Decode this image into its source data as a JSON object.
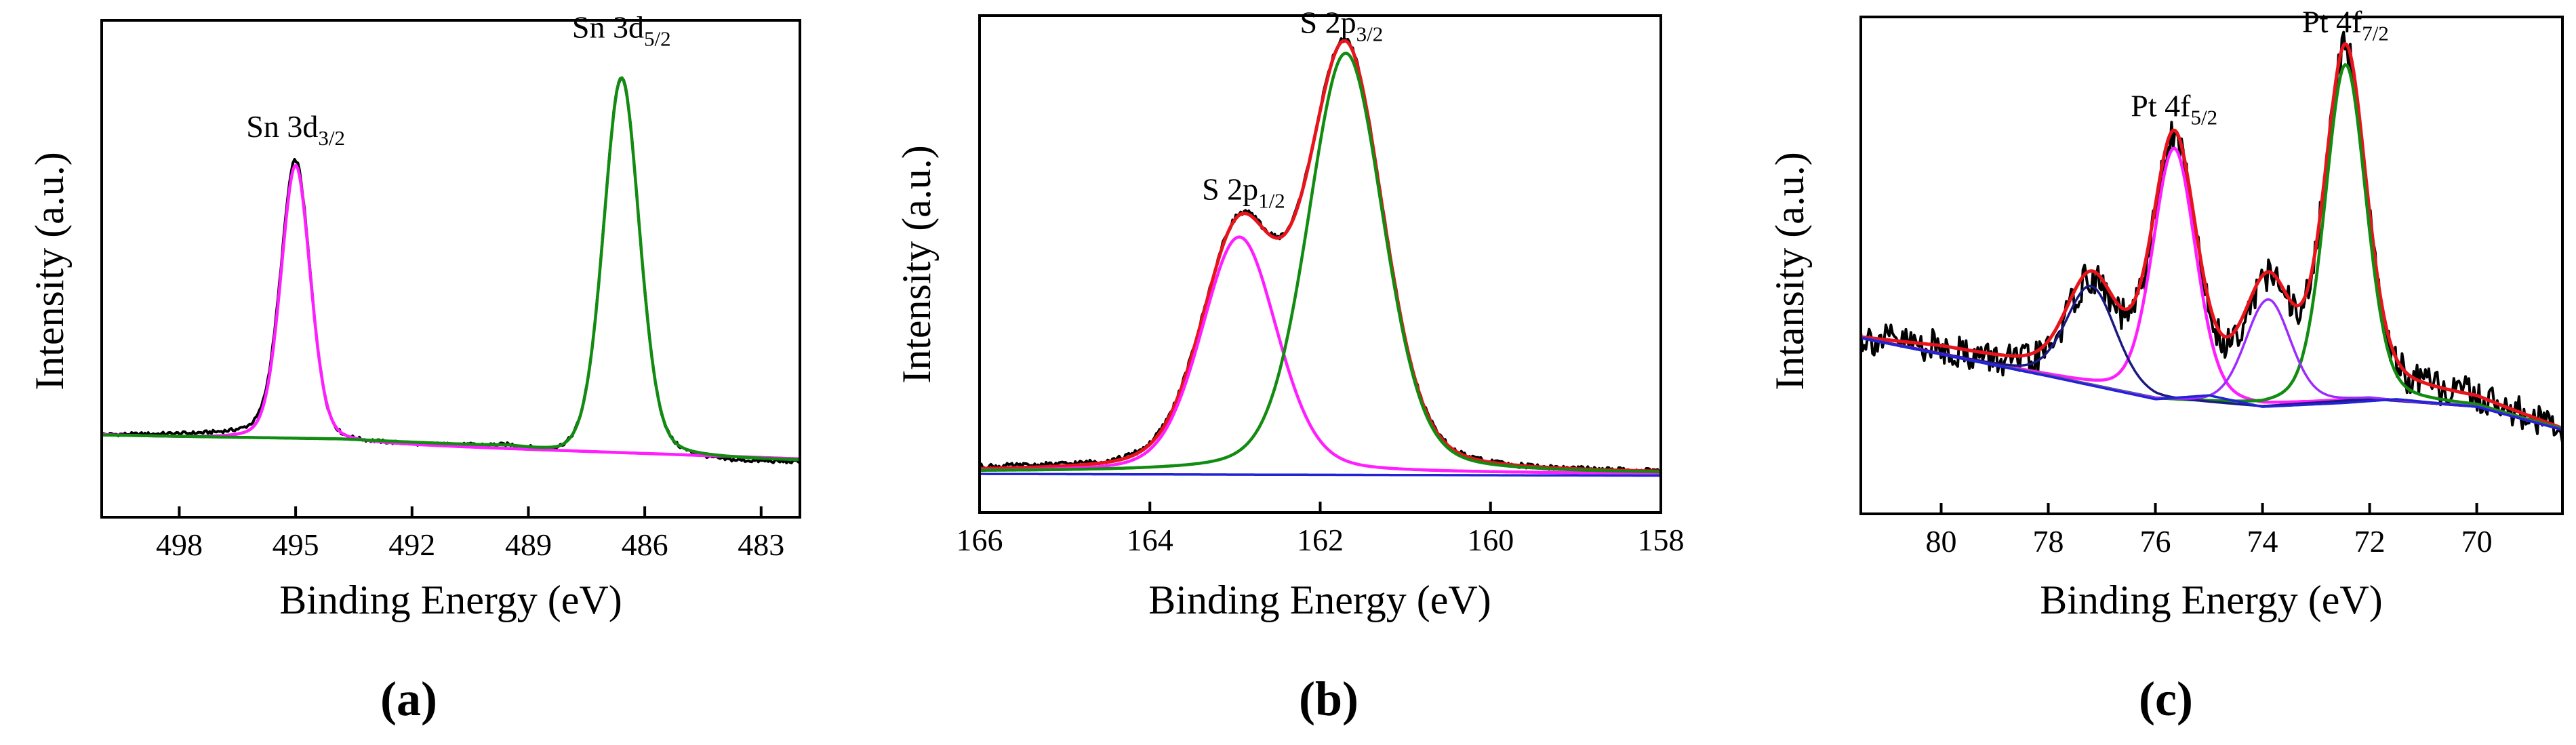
{
  "figure_labels": [
    "(a)",
    "(b)",
    "(c)"
  ],
  "colors": {
    "raw": "#000000",
    "envelope": "#e8141b",
    "magenta": "#ff1eff",
    "green": "#118c11",
    "navy": "#1a1a80",
    "violet": "#9c2bff",
    "baseline_blue": "#2323d6",
    "frame": "#000000"
  },
  "chart_data": [
    {
      "type": "line",
      "panel": "(a)",
      "xlabel": "Binding Energy (eV)",
      "ylabel": "Intensity (a.u.)",
      "xlim": [
        500,
        482
      ],
      "x_reversed": true,
      "ylim": [
        -10,
        105
      ],
      "y_ticks_shown": false,
      "xticks": [
        498,
        495,
        492,
        489,
        486,
        483
      ],
      "xtick_labels": [
        "498",
        "495",
        "492",
        "489",
        "486",
        "483"
      ],
      "series": [
        {
          "name": "raw",
          "color": "black",
          "baseline": [
            [
              500,
              9.0
            ],
            [
              495.2,
              9.0
            ],
            [
              494.4,
              7.2
            ],
            [
              492.0,
              6.5
            ],
            [
              489.5,
              6.0
            ],
            [
              488.4,
              4.0
            ],
            [
              485.2,
              3.5
            ],
            [
              484.0,
              2.5
            ],
            [
              482,
              2.5
            ]
          ],
          "peaks": [
            {
              "center": 495.0,
              "height": 64,
              "fwhm": 0.9
            },
            {
              "center": 486.6,
              "height": 88,
              "fwhm": 1.1
            }
          ],
          "noise": 0.4
        },
        {
          "name": "Sn 3d3/2 fit",
          "color": "magenta",
          "baseline": [
            [
              500,
              9.0
            ],
            [
              482,
              3.5
            ]
          ],
          "peaks": [
            {
              "center": 495.0,
              "height": 64,
              "fwhm": 0.9
            }
          ]
        },
        {
          "name": "Sn 3d5/2 fit",
          "color": "green",
          "baseline": [
            [
              500,
              9.0
            ],
            [
              493.8,
              8.0
            ],
            [
              489.5,
              6.0
            ],
            [
              488.2,
              4.0
            ],
            [
              482,
              3.0
            ]
          ],
          "peaks": [
            {
              "center": 486.6,
              "height": 88,
              "fwhm": 1.1
            }
          ]
        }
      ],
      "annotations": [
        {
          "base": "Sn 3d",
          "sub": "3/2",
          "x": 495.0,
          "y": 78
        },
        {
          "base": "Sn 3d",
          "sub": "5/2",
          "x": 486.6,
          "y": 101
        }
      ]
    },
    {
      "type": "line",
      "panel": "(b)",
      "xlabel": "Binding Energy (eV)",
      "ylabel": "Intensity (a.u.)",
      "xlim": [
        166,
        158
      ],
      "x_reversed": true,
      "ylim": [
        -8,
        108
      ],
      "y_ticks_shown": false,
      "xticks": [
        166,
        164,
        162,
        160,
        158
      ],
      "xtick_labels": [
        "166",
        "164",
        "162",
        "160",
        "158"
      ],
      "series": [
        {
          "name": "raw",
          "color": "black",
          "baseline": [
            [
              166,
              2.0
            ],
            [
              158,
              1.0
            ]
          ],
          "peaks": [
            {
              "center": 162.95,
              "height": 55,
              "fwhm": 1.05
            },
            {
              "center": 161.7,
              "height": 98,
              "fwhm": 1.05
            }
          ],
          "noise": 0.6
        },
        {
          "name": "envelope",
          "color": "red",
          "baseline": [
            [
              166,
              1.5
            ],
            [
              158,
              1.0
            ]
          ],
          "peaks": [
            {
              "center": 162.95,
              "height": 55,
              "fwhm": 1.05
            },
            {
              "center": 161.7,
              "height": 98,
              "fwhm": 1.05
            }
          ]
        },
        {
          "name": "S 2p1/2 fit",
          "color": "magenta",
          "baseline": [
            [
              166,
              1.5
            ],
            [
              158,
              1.0
            ]
          ],
          "peaks": [
            {
              "center": 162.95,
              "height": 55,
              "fwhm": 1.05
            }
          ]
        },
        {
          "name": "S 2p3/2 fit",
          "color": "green",
          "baseline": [
            [
              166,
              1.5
            ],
            [
              158,
              1.0
            ]
          ],
          "peaks": [
            {
              "center": 161.7,
              "height": 98,
              "fwhm": 1.05
            }
          ]
        },
        {
          "name": "baseline",
          "color": "blue",
          "baseline": [
            [
              166,
              1.0
            ],
            [
              158,
              0.6
            ]
          ],
          "peaks": []
        }
      ],
      "annotations": [
        {
          "base": "S 2p",
          "sub": "1/2",
          "x": 162.9,
          "y": 65
        },
        {
          "base": "S 2p",
          "sub": "3/2",
          "x": 161.75,
          "y": 104
        }
      ]
    },
    {
      "type": "line",
      "panel": "(c)",
      "xlabel": "Binding Energy (eV)",
      "ylabel": "Intansity (a.u.)",
      "xlim": [
        81.5,
        68.4
      ],
      "x_reversed": true,
      "ylim": [
        0,
        130
      ],
      "y_ticks_shown": false,
      "xticks": [
        80,
        78,
        76,
        74,
        72,
        70
      ],
      "xtick_labels": [
        "80",
        "78",
        "76",
        "74",
        "72",
        "70"
      ],
      "series": [
        {
          "name": "raw",
          "color": "black",
          "baseline": [
            [
              81.5,
              46
            ],
            [
              80.0,
              43
            ],
            [
              78.0,
              36
            ],
            [
              76.0,
              33
            ],
            [
              74.0,
              32
            ],
            [
              72.0,
              33
            ],
            [
              70.0,
              30
            ],
            [
              68.4,
              21
            ]
          ],
          "peaks": [
            {
              "center": 77.2,
              "height": 25,
              "fwhm": 1.1
            },
            {
              "center": 75.65,
              "height": 64,
              "fwhm": 0.95
            },
            {
              "center": 73.9,
              "height": 27,
              "fwhm": 1.0
            },
            {
              "center": 72.45,
              "height": 88,
              "fwhm": 0.9
            }
          ],
          "noise": 4.5
        },
        {
          "name": "envelope",
          "color": "red",
          "baseline": [
            [
              81.5,
              46
            ],
            [
              80.0,
              43.5
            ],
            [
              78.0,
              38
            ],
            [
              76.0,
              35
            ],
            [
              74.0,
              33
            ],
            [
              72.0,
              34
            ],
            [
              70.0,
              30
            ],
            [
              68.4,
              22
            ]
          ],
          "peaks": [
            {
              "center": 77.2,
              "height": 25,
              "fwhm": 1.1
            },
            {
              "center": 75.65,
              "height": 64,
              "fwhm": 0.95
            },
            {
              "center": 73.9,
              "height": 27,
              "fwhm": 1.0
            },
            {
              "center": 72.45,
              "height": 88,
              "fwhm": 0.9
            }
          ]
        },
        {
          "name": "Pt 4f5/2 fit",
          "color": "magenta",
          "baseline": [
            [
              81.5,
              46
            ],
            [
              78.0,
              36
            ],
            [
              76.0,
              30
            ],
            [
              74.0,
              28
            ],
            [
              72.0,
              30
            ],
            [
              70.0,
              28
            ],
            [
              68.4,
              22
            ]
          ],
          "peaks": [
            {
              "center": 75.65,
              "height": 66,
              "fwhm": 0.95
            }
          ]
        },
        {
          "name": "Pt 4f7/2 fit",
          "color": "green",
          "baseline": [
            [
              81.5,
              46
            ],
            [
              78.0,
              36
            ],
            [
              76.0,
              30
            ],
            [
              74.0,
              28
            ],
            [
              72.0,
              30
            ],
            [
              70.0,
              28
            ],
            [
              68.4,
              22
            ]
          ],
          "peaks": [
            {
              "center": 72.45,
              "height": 88,
              "fwhm": 0.9
            }
          ]
        },
        {
          "name": "peak 77.2 fit",
          "color": "navy",
          "baseline": [
            [
              81.5,
              46
            ],
            [
              78.0,
              36
            ],
            [
              76.0,
              30
            ],
            [
              74.0,
              28
            ],
            [
              72.0,
              30
            ],
            [
              70.0,
              28
            ],
            [
              68.4,
              22
            ]
          ],
          "peaks": [
            {
              "center": 77.2,
              "height": 26,
              "fwhm": 1.1
            }
          ]
        },
        {
          "name": "peak 73.9 fit",
          "color": "violet",
          "baseline": [
            [
              81.5,
              46
            ],
            [
              78.0,
              36
            ],
            [
              76.0,
              30
            ],
            [
              74.0,
              28
            ],
            [
              72.0,
              30
            ],
            [
              70.0,
              28
            ],
            [
              68.4,
              22
            ]
          ],
          "peaks": [
            {
              "center": 73.9,
              "height": 28,
              "fwhm": 1.0
            }
          ]
        },
        {
          "name": "baseline",
          "color": "blue",
          "baseline": [
            [
              81.5,
              46
            ],
            [
              78.0,
              36
            ],
            [
              76.0,
              30
            ],
            [
              75.0,
              31
            ],
            [
              74.0,
              28
            ],
            [
              72.5,
              29
            ],
            [
              71.5,
              30
            ],
            [
              70.0,
              28
            ],
            [
              68.4,
              22
            ]
          ],
          "peaks": []
        }
      ],
      "annotations": [
        {
          "base": "Pt 4f",
          "sub": "5/2",
          "x": 75.65,
          "y": 104
        },
        {
          "base": "Pt 4f",
          "sub": "7/2",
          "x": 72.45,
          "y": 126
        }
      ]
    }
  ]
}
